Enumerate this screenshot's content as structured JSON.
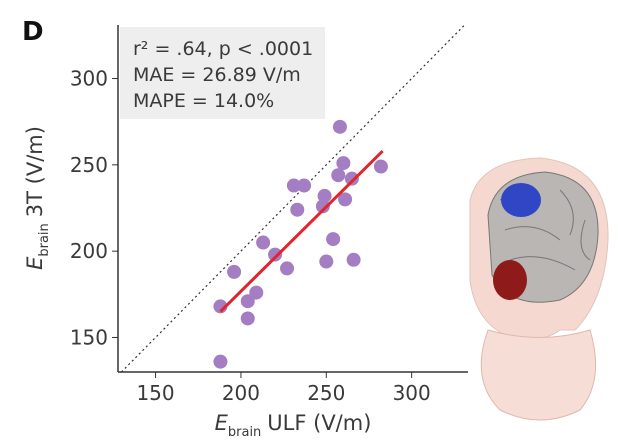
{
  "chart_data": {
    "type": "scatter",
    "panel_label": "D",
    "xlabel": [
      "E",
      "brain",
      "ULF (V/m)"
    ],
    "ylabel": [
      "E",
      "brain",
      "3T (V/m)"
    ],
    "annotations": [
      "r² = .64, p < .0001",
      "MAE = 26.89 V/m",
      "MAPE = 14.0%"
    ],
    "x": [
      258,
      282,
      260,
      257,
      265,
      231,
      237,
      249,
      248,
      261,
      233,
      213,
      254,
      220,
      227,
      250,
      266,
      196,
      209,
      204,
      188,
      204,
      188
    ],
    "y": [
      272,
      249,
      251,
      244,
      242,
      238,
      238,
      232,
      226,
      230,
      224,
      205,
      207,
      198,
      190,
      194,
      195,
      188,
      176,
      171,
      168,
      161,
      136
    ],
    "color": "#a57dc2",
    "fit": {
      "x": [
        188,
        283
      ],
      "y": [
        165,
        258
      ],
      "color": "#e0252b"
    },
    "xlim": [
      128,
      333
    ],
    "ylim": [
      130,
      331
    ],
    "xticks": [
      150,
      200,
      250,
      300
    ],
    "yticks": [
      150,
      200,
      250,
      300
    ]
  }
}
